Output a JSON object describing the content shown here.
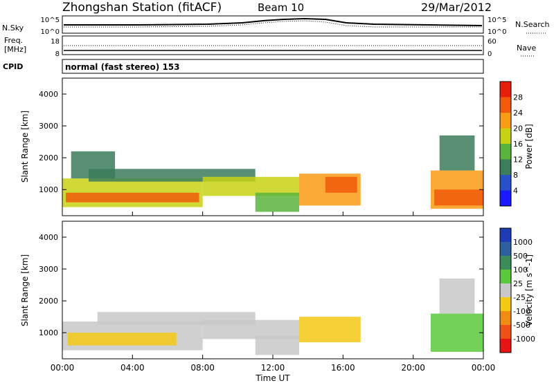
{
  "header": {
    "station": "Zhongshan Station (fitACF)",
    "beam": "Beam 10",
    "date": "29/Mar/2012"
  },
  "panels": {
    "nsky": {
      "label": "N.Sky",
      "left_ticks": [
        "10^5",
        "10^0"
      ],
      "right_ticks": [
        "10^5",
        "10^0"
      ],
      "right_label": "N.Search"
    },
    "freq": {
      "label_line1": "Freq.",
      "label_line2": "[MHz]",
      "left_ticks": [
        "18",
        "8"
      ],
      "right_ticks": [
        "60",
        "0"
      ],
      "right_label": "Nave"
    },
    "cpid": {
      "label": "CPID",
      "text": "normal (fast stereo) 153"
    }
  },
  "chart_data": [
    {
      "type": "heatmap",
      "name": "power-panel",
      "xlabel": "",
      "ylabel": "Slant Range [km]",
      "ylim": [
        180,
        4500
      ],
      "xlim": [
        0,
        24
      ],
      "x_tick_labels": [],
      "y_ticks": [
        1000,
        2000,
        3000,
        4000
      ],
      "y_tick_labels": [
        "1000",
        "2000",
        "3000",
        "4000"
      ],
      "colorbar": {
        "label": "Power [dB]",
        "tick_labels": [
          "4",
          "8",
          "12",
          "16",
          "20",
          "24",
          "28"
        ],
        "colors": [
          "#1a1aff",
          "#2850c8",
          "#3c7d5a",
          "#5ab43c",
          "#c8d214",
          "#fa9b14",
          "#f05a0a",
          "#e61e0a"
        ],
        "range": [
          0,
          32
        ]
      },
      "regions": [
        {
          "t0": 0.0,
          "t1": 8.0,
          "r0": 450,
          "r1": 1350,
          "value": 18
        },
        {
          "t0": 0.2,
          "t1": 7.8,
          "r0": 600,
          "r1": 900,
          "value": 26
        },
        {
          "t0": 0.5,
          "t1": 3.0,
          "r0": 1350,
          "r1": 2200,
          "value": 8
        },
        {
          "t0": 1.5,
          "t1": 11.0,
          "r0": 1250,
          "r1": 1650,
          "value": 11
        },
        {
          "t0": 8.0,
          "t1": 13.5,
          "r0": 800,
          "r1": 1400,
          "value": 16
        },
        {
          "t0": 11.0,
          "t1": 13.5,
          "r0": 300,
          "r1": 900,
          "value": 14
        },
        {
          "t0": 13.5,
          "t1": 17.0,
          "r0": 500,
          "r1": 1500,
          "value": 20
        },
        {
          "t0": 15.0,
          "t1": 16.8,
          "r0": 900,
          "r1": 1400,
          "value": 27
        },
        {
          "t0": 21.0,
          "t1": 24.0,
          "r0": 400,
          "r1": 1600,
          "value": 22
        },
        {
          "t0": 21.2,
          "t1": 24.0,
          "r0": 500,
          "r1": 1000,
          "value": 27
        },
        {
          "t0": 21.5,
          "t1": 23.5,
          "r0": 1600,
          "r1": 2700,
          "value": 9
        }
      ]
    },
    {
      "type": "heatmap",
      "name": "velocity-panel",
      "xlabel": "Time UT",
      "ylabel": "Slant Range [km]",
      "ylim": [
        180,
        4500
      ],
      "xlim": [
        0,
        24
      ],
      "x_ticks": [
        0,
        4,
        8,
        12,
        16,
        20,
        24
      ],
      "x_tick_labels": [
        "00:00",
        "04:00",
        "08:00",
        "12:00",
        "16:00",
        "20:00",
        "00:00"
      ],
      "y_ticks": [
        1000,
        2000,
        3000,
        4000
      ],
      "y_tick_labels": [
        "1000",
        "2000",
        "3000",
        "4000"
      ],
      "colorbar": {
        "label": "Velocity [m s^-1]",
        "tick_labels": [
          "1000",
          "500",
          "100",
          "25",
          "-25",
          "-100",
          "-500",
          "-1000"
        ],
        "colors": [
          "#1e3cb4",
          "#2e5fa0",
          "#3c8c5a",
          "#5ac83c",
          "#c8c8c8",
          "#f5c814",
          "#f08c14",
          "#f05014",
          "#e61414"
        ],
        "range": [
          -1500,
          1500
        ]
      },
      "regions": [
        {
          "t0": 0.0,
          "t1": 8.0,
          "r0": 450,
          "r1": 1350,
          "value": -150
        },
        {
          "t0": 0.3,
          "t1": 6.5,
          "r0": 600,
          "r1": 1000,
          "value": -350
        },
        {
          "t0": 2.0,
          "t1": 11.0,
          "r0": 1250,
          "r1": 1650,
          "value": 0
        },
        {
          "t0": 8.0,
          "t1": 13.5,
          "r0": 800,
          "r1": 1400,
          "value": 0
        },
        {
          "t0": 11.0,
          "t1": 13.5,
          "r0": 300,
          "r1": 900,
          "value": 150
        },
        {
          "t0": 13.5,
          "t1": 17.0,
          "r0": 700,
          "r1": 1500,
          "value": -250
        },
        {
          "t0": 21.0,
          "t1": 24.0,
          "r0": 400,
          "r1": 1600,
          "value": 200
        },
        {
          "t0": 21.5,
          "t1": 23.5,
          "r0": 1600,
          "r1": 2700,
          "value": 0
        }
      ]
    }
  ]
}
